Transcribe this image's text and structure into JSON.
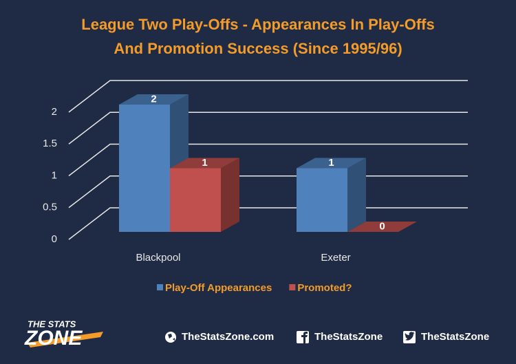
{
  "chart_data": {
    "type": "bar3d",
    "title": [
      "League Two Play-Offs - Appearances In Play-Offs",
      "And Promotion Success (Since 1995/96)"
    ],
    "categories": [
      "Blackpool",
      "Exeter"
    ],
    "series": [
      {
        "name": "Play-Off Appearances",
        "color": "#4f81bd",
        "values": [
          2,
          1
        ]
      },
      {
        "name": "Promoted?",
        "color": "#c0504d",
        "values": [
          1,
          0
        ]
      }
    ],
    "ylim": [
      0,
      2
    ],
    "yticks": [
      0,
      0.5,
      1,
      1.5,
      2
    ],
    "grid": true,
    "legend": "bottom"
  },
  "footer": {
    "brand_top": "THE STATS",
    "brand_bottom": "ZONE",
    "links": [
      "TheStatsZone.com",
      "TheStatsZone",
      "TheStatsZone"
    ]
  }
}
